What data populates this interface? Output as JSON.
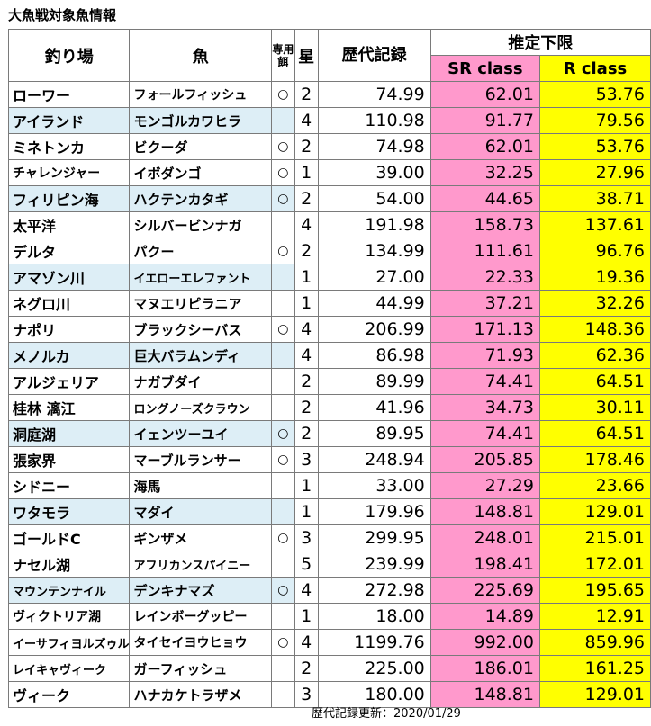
{
  "title": "大魚戦対象魚情報",
  "headers": {
    "place": "釣り場",
    "fish": "魚",
    "bait": "専用餌",
    "star": "星",
    "record": "歴代記録",
    "estimate": "推定下限",
    "sr": "SR class",
    "r": "R class"
  },
  "rows": [
    {
      "place": "ローワー",
      "fish": "フォールフィッシュ",
      "bait": "○",
      "star": "2",
      "record": "74.99",
      "sr": "62.01",
      "r": "53.76",
      "alt": false
    },
    {
      "place": "アイランド",
      "fish": "モンゴルカワヒラ",
      "bait": "",
      "star": "4",
      "record": "110.98",
      "sr": "91.77",
      "r": "79.56",
      "alt": true
    },
    {
      "place": "ミネトンカ",
      "fish": "ビクーダ",
      "bait": "○",
      "star": "2",
      "record": "74.98",
      "sr": "62.01",
      "r": "53.76",
      "alt": false
    },
    {
      "place": "チャレンジャー",
      "fish": "イボダンゴ",
      "bait": "○",
      "star": "1",
      "record": "39.00",
      "sr": "32.25",
      "r": "27.96",
      "alt": false
    },
    {
      "place": "フィリピン海",
      "fish": "ハクテンカタギ",
      "bait": "○",
      "star": "2",
      "record": "54.00",
      "sr": "44.65",
      "r": "38.71",
      "alt": true
    },
    {
      "place": "太平洋",
      "fish": "シルバービンナガ",
      "bait": "",
      "star": "4",
      "record": "191.98",
      "sr": "158.73",
      "r": "137.61",
      "alt": false
    },
    {
      "place": "デルタ",
      "fish": "パクー",
      "bait": "○",
      "star": "2",
      "record": "134.99",
      "sr": "111.61",
      "r": "96.76",
      "alt": false
    },
    {
      "place": "アマゾン川",
      "fish": "イエローエレファント",
      "bait": "",
      "star": "1",
      "record": "27.00",
      "sr": "22.33",
      "r": "19.36",
      "alt": true
    },
    {
      "place": "ネグロ川",
      "fish": "マヌエリピラニア",
      "bait": "",
      "star": "1",
      "record": "44.99",
      "sr": "37.21",
      "r": "32.26",
      "alt": false
    },
    {
      "place": "ナポリ",
      "fish": "ブラックシーバス",
      "bait": "○",
      "star": "4",
      "record": "206.99",
      "sr": "171.13",
      "r": "148.36",
      "alt": false
    },
    {
      "place": "メノルカ",
      "fish": "巨大バラムンディ",
      "bait": "",
      "star": "4",
      "record": "86.98",
      "sr": "71.93",
      "r": "62.36",
      "alt": true
    },
    {
      "place": "アルジェリア",
      "fish": "ナガブダイ",
      "bait": "",
      "star": "2",
      "record": "89.99",
      "sr": "74.41",
      "r": "64.51",
      "alt": false
    },
    {
      "place": "桂林 漓江",
      "fish": "ロングノーズクラウン",
      "bait": "",
      "star": "2",
      "record": "41.96",
      "sr": "34.73",
      "r": "30.11",
      "alt": false
    },
    {
      "place": "洞庭湖",
      "fish": "イェンツーユイ",
      "bait": "○",
      "star": "2",
      "record": "89.95",
      "sr": "74.41",
      "r": "64.51",
      "alt": true
    },
    {
      "place": "張家界",
      "fish": "マーブルランサー",
      "bait": "○",
      "star": "3",
      "record": "248.94",
      "sr": "205.85",
      "r": "178.46",
      "alt": false
    },
    {
      "place": "シドニー",
      "fish": "海馬",
      "bait": "",
      "star": "1",
      "record": "33.00",
      "sr": "27.29",
      "r": "23.66",
      "alt": false
    },
    {
      "place": "ワタモラ",
      "fish": "マダイ",
      "bait": "",
      "star": "1",
      "record": "179.96",
      "sr": "148.81",
      "r": "129.01",
      "alt": true
    },
    {
      "place": "ゴールドC",
      "fish": "ギンザメ",
      "bait": "○",
      "star": "3",
      "record": "299.95",
      "sr": "248.01",
      "r": "215.01",
      "alt": false
    },
    {
      "place": "ナセル湖",
      "fish": "アフリカンスパイニー",
      "bait": "",
      "star": "5",
      "record": "239.99",
      "sr": "198.41",
      "r": "172.01",
      "alt": false
    },
    {
      "place": "マウンテンナイル",
      "fish": "デンキナマズ",
      "bait": "○",
      "star": "4",
      "record": "272.98",
      "sr": "225.69",
      "r": "195.65",
      "alt": true
    },
    {
      "place": "ヴィクトリア湖",
      "fish": "レインボーグッピー",
      "bait": "",
      "star": "1",
      "record": "18.00",
      "sr": "14.89",
      "r": "12.91",
      "alt": false
    },
    {
      "place": "イーサフィヨルズゥル",
      "fish": "タイセイヨウヒョウ",
      "bait": "○",
      "star": "4",
      "record": "1199.76",
      "sr": "992.00",
      "r": "859.96",
      "alt": false
    },
    {
      "place": "レイキャヴィーク",
      "fish": "ガーフィッシュ",
      "bait": "",
      "star": "2",
      "record": "225.00",
      "sr": "186.01",
      "r": "161.25",
      "alt": false
    },
    {
      "place": "ヴィーク",
      "fish": "ハナカケトラザメ",
      "bait": "",
      "star": "3",
      "record": "180.00",
      "sr": "148.81",
      "r": "129.01",
      "alt": false
    }
  ],
  "footer": "歴代記録更新：2020/01/29",
  "colors": {
    "sr": "#ff99cc",
    "r": "#ffff00",
    "alt_row": "#ddeef6",
    "border": "#7a7a7a"
  }
}
